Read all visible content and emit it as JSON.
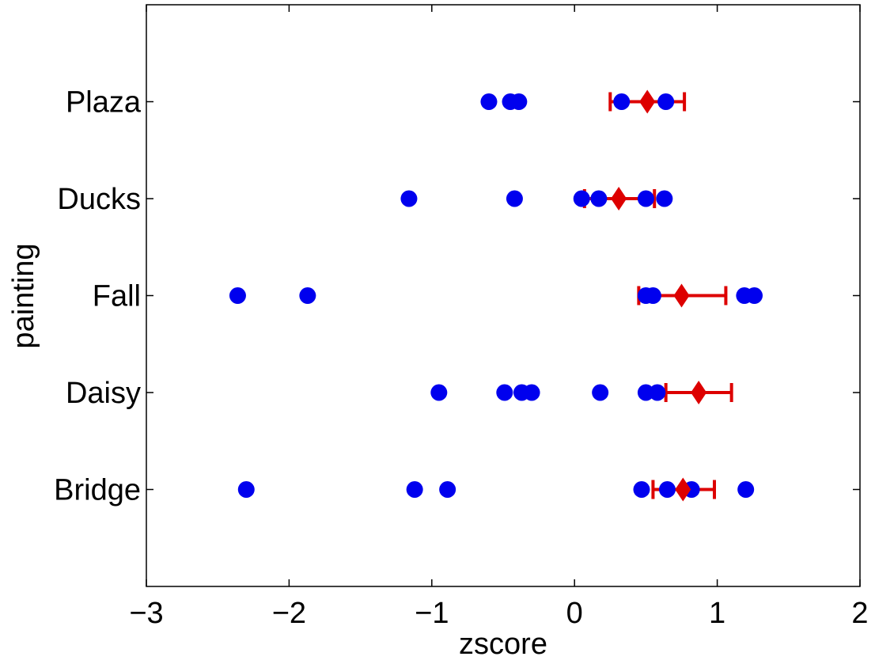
{
  "chart_data": {
    "type": "scatter",
    "title": "",
    "xlabel": "zscore",
    "ylabel": "painting",
    "xlim": [
      -3,
      2
    ],
    "ylim": [
      0,
      6
    ],
    "x_ticks": [
      -3,
      -2,
      -1,
      0,
      1,
      2
    ],
    "x_tick_labels": [
      "−3",
      "−2",
      "−1",
      "0",
      "1",
      "2"
    ],
    "categories": [
      "Bridge",
      "Daisy",
      "Fall",
      "Ducks",
      "Plaza"
    ],
    "grid": false,
    "colors": {
      "points": "#0000ee",
      "summary": "#dd0000"
    },
    "series": [
      {
        "values": [
          [
            -2.3,
            -1.12,
            -0.89,
            0.47,
            0.65,
            0.82,
            1.2
          ],
          [
            -0.95,
            -0.49,
            -0.37,
            -0.3,
            0.18,
            0.5,
            0.58
          ],
          [
            -2.36,
            -1.87,
            0.5,
            0.55,
            1.19,
            1.26
          ],
          [
            -1.16,
            -0.42,
            0.05,
            0.17,
            0.5,
            0.63
          ],
          [
            -0.6,
            -0.45,
            -0.39,
            0.33,
            0.64
          ]
        ]
      },
      {
        "mean": [
          0.76,
          0.87,
          0.75,
          0.31,
          0.51
        ],
        "lower": [
          0.55,
          0.64,
          0.45,
          0.07,
          0.25
        ],
        "upper": [
          0.98,
          1.1,
          1.06,
          0.56,
          0.77
        ]
      }
    ]
  }
}
